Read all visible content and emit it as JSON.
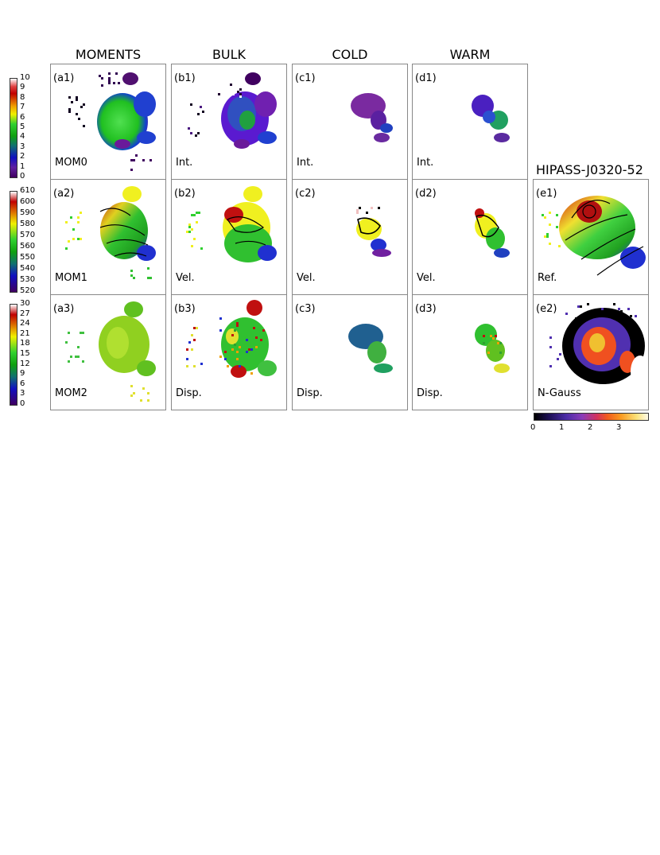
{
  "columns": {
    "moments": "MOMENTS",
    "bulk": "BULK",
    "cold": "COLD",
    "warm": "WARM"
  },
  "source_title": "HIPASS-J0320-52",
  "colorbars": {
    "intensity": [
      "10",
      "9",
      "8",
      "7",
      "6",
      "5",
      "4",
      "3",
      "2",
      "1",
      "0"
    ],
    "velocity": [
      "610",
      "600",
      "590",
      "580",
      "570",
      "560",
      "550",
      "540",
      "530",
      "520"
    ],
    "dispersion": [
      "30",
      "27",
      "24",
      "21",
      "18",
      "15",
      "12",
      "9",
      "6",
      "3",
      "0"
    ],
    "ngauss": [
      "0",
      "1",
      "2",
      "3"
    ]
  },
  "panels": {
    "a1": {
      "tag": "(a1)",
      "label": "MOM0"
    },
    "b1": {
      "tag": "(b1)",
      "label": "Int."
    },
    "c1": {
      "tag": "(c1)",
      "label": "Int."
    },
    "d1": {
      "tag": "(d1)",
      "label": "Int."
    },
    "a2": {
      "tag": "(a2)",
      "label": "MOM1"
    },
    "b2": {
      "tag": "(b2)",
      "label": "Vel."
    },
    "c2": {
      "tag": "(c2)",
      "label": "Vel."
    },
    "d2": {
      "tag": "(d2)",
      "label": "Vel."
    },
    "e1": {
      "tag": "(e1)",
      "label": "Ref."
    },
    "a3": {
      "tag": "(a3)",
      "label": "MOM2"
    },
    "b3": {
      "tag": "(b3)",
      "label": "Disp."
    },
    "c3": {
      "tag": "(c3)",
      "label": "Disp."
    },
    "d3": {
      "tag": "(d3)",
      "label": "Disp."
    },
    "e2": {
      "tag": "(e2)",
      "label": "N-Gauss"
    }
  }
}
